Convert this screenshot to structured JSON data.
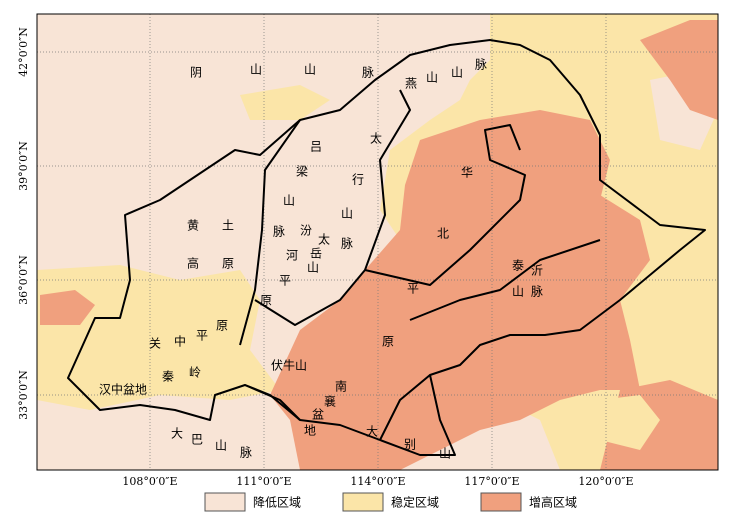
{
  "graticule": {
    "lat": [
      "42°0′0″N",
      "39°0′0″N",
      "36°0′0″N",
      "33°0′0″N"
    ],
    "lon": [
      "108°0′0″E",
      "111°0′0″E",
      "114°0′0″E",
      "117°0′0″E",
      "120°0′0″E"
    ]
  },
  "legend": [
    "降低区域",
    "稳定区域",
    "增高区域"
  ],
  "places": [
    "阴",
    "山",
    "山",
    "脉",
    "燕",
    "山",
    "山",
    "脉",
    "太",
    "行",
    "山",
    "脉",
    "吕",
    "梁",
    "山",
    "脉",
    "汾",
    "河",
    "平",
    "原",
    "太",
    "岳",
    "山",
    "黄",
    "土",
    "高",
    "原",
    "关",
    "中",
    "平",
    "原",
    "秦",
    "岭",
    "汉中盆地",
    "伏牛山",
    "南",
    "襄",
    "盆",
    "地",
    "大",
    "巴",
    "山",
    "脉",
    "大",
    "别",
    "山",
    "华",
    "北",
    "平",
    "原",
    "泰",
    "沂",
    "山",
    "脉"
  ]
}
